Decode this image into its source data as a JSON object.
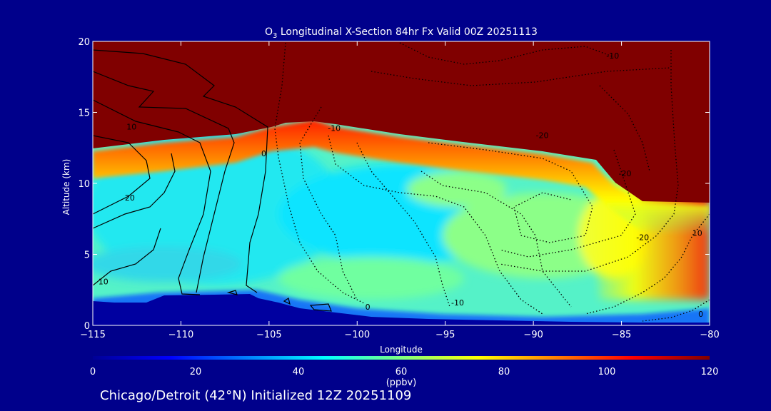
{
  "chart_data": {
    "type": "heatmap",
    "title": "O",
    "title_subscript": "3",
    "title_rest": " Longitudinal X-Section 84hr  Fx Valid 00Z 20251113",
    "xlabel": "Longitude",
    "ylabel": "Altitude (km)",
    "xlim": [
      -115,
      -80
    ],
    "ylim": [
      0,
      20
    ],
    "x_ticks": [
      -115,
      -110,
      -105,
      -100,
      -95,
      -90,
      -85,
      -80
    ],
    "x_tick_labels": [
      "−115",
      "−110",
      "−105",
      "−100",
      "−95",
      "−90",
      "−85",
      "−80"
    ],
    "y_ticks": [
      0,
      5,
      10,
      15,
      20
    ],
    "y_tick_labels": [
      "0",
      "5",
      "10",
      "15",
      "20"
    ],
    "colorbar": {
      "label": "(ppbv)",
      "range": [
        0,
        120
      ],
      "ticks": [
        0,
        20,
        40,
        60,
        80,
        100,
        120
      ],
      "tick_labels": [
        "0",
        "20",
        "40",
        "60",
        "80",
        "100",
        "120"
      ],
      "colors": [
        "#000096",
        "#0000ff",
        "#0080ff",
        "#00ffff",
        "#80ff80",
        "#ffff00",
        "#ff8000",
        "#ff0000",
        "#800000"
      ]
    },
    "filled_field": {
      "description_units": "ppbv",
      "tropopause_km_by_longitude": [
        {
          "lon": -115,
          "alt": 12.0
        },
        {
          "lon": -110,
          "alt": 12.6
        },
        {
          "lon": -106,
          "alt": 13.1
        },
        {
          "lon": -103,
          "alt": 14.2
        },
        {
          "lon": -100,
          "alt": 13.3
        },
        {
          "lon": -95,
          "alt": 12.5
        },
        {
          "lon": -90,
          "alt": 12.0
        },
        {
          "lon": -86.5,
          "alt": 11.2
        },
        {
          "lon": -85,
          "alt": 9.0
        },
        {
          "lon": -80,
          "alt": 8.5
        }
      ],
      "surface_km_by_longitude": [
        {
          "lon": -115,
          "alt": 1.6
        },
        {
          "lon": -110,
          "alt": 1.9
        },
        {
          "lon": -105,
          "alt": 2.0
        },
        {
          "lon": -102,
          "alt": 1.2
        },
        {
          "lon": -100,
          "alt": 0.8
        },
        {
          "lon": -95,
          "alt": 0.5
        },
        {
          "lon": -90,
          "alt": 0.3
        },
        {
          "lon": -85,
          "alt": 0.2
        },
        {
          "lon": -80,
          "alt": 0.2
        }
      ]
    },
    "contour_labels": [
      {
        "text": "-10",
        "lon": -85.5,
        "alt": 19.0
      },
      {
        "text": "10",
        "lon": -112.8,
        "alt": 14.0
      },
      {
        "text": "-10",
        "lon": -101.3,
        "alt": 13.9
      },
      {
        "text": "-20",
        "lon": -89.5,
        "alt": 13.4
      },
      {
        "text": "0",
        "lon": -105.3,
        "alt": 12.1
      },
      {
        "text": "20",
        "lon": -112.9,
        "alt": 9.0
      },
      {
        "text": "-20",
        "lon": -84.8,
        "alt": 10.7
      },
      {
        "text": "-20",
        "lon": -83.8,
        "alt": 6.2
      },
      {
        "text": "10",
        "lon": -80.7,
        "alt": 6.5
      },
      {
        "text": "10",
        "lon": -114.4,
        "alt": 3.1
      },
      {
        "text": "-10",
        "lon": -94.3,
        "alt": 1.6
      },
      {
        "text": "0",
        "lon": -99.4,
        "alt": 1.3
      },
      {
        "text": "0",
        "lon": -80.5,
        "alt": 0.8
      }
    ]
  },
  "footer": "Chicago/Detroit (42°N) Initialized 12Z 20251109"
}
